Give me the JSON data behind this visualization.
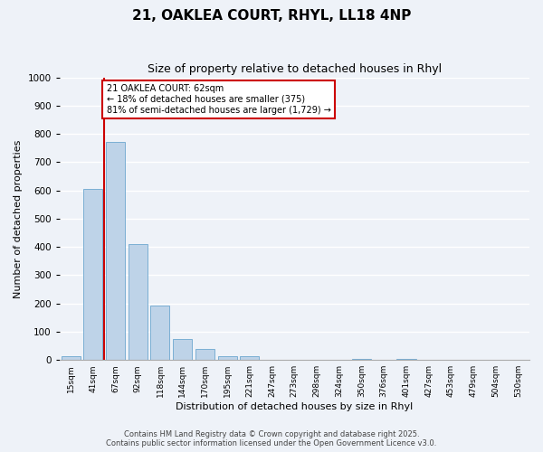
{
  "title": "21, OAKLEA COURT, RHYL, LL18 4NP",
  "subtitle": "Size of property relative to detached houses in Rhyl",
  "xlabel": "Distribution of detached houses by size in Rhyl",
  "ylabel": "Number of detached properties",
  "bar_labels": [
    "15sqm",
    "41sqm",
    "67sqm",
    "92sqm",
    "118sqm",
    "144sqm",
    "170sqm",
    "195sqm",
    "221sqm",
    "247sqm",
    "273sqm",
    "298sqm",
    "324sqm",
    "350sqm",
    "376sqm",
    "401sqm",
    "427sqm",
    "453sqm",
    "479sqm",
    "504sqm",
    "530sqm"
  ],
  "bar_heights": [
    15,
    605,
    770,
    410,
    193,
    75,
    38,
    15,
    12,
    0,
    0,
    0,
    0,
    5,
    0,
    5,
    0,
    0,
    0,
    0,
    0
  ],
  "bar_color": "#bed3e8",
  "bar_edge_color": "#7bafd4",
  "ylim": [
    0,
    1000
  ],
  "yticks": [
    0,
    100,
    200,
    300,
    400,
    500,
    600,
    700,
    800,
    900,
    1000
  ],
  "vline_color": "#cc0000",
  "annotation_title": "21 OAKLEA COURT: 62sqm",
  "annotation_line1": "← 18% of detached houses are smaller (375)",
  "annotation_line2": "81% of semi-detached houses are larger (1,729) →",
  "annotation_box_color": "#cc0000",
  "background_color": "#eef2f8",
  "grid_color": "#ffffff",
  "footer_line1": "Contains HM Land Registry data © Crown copyright and database right 2025.",
  "footer_line2": "Contains public sector information licensed under the Open Government Licence v3.0."
}
